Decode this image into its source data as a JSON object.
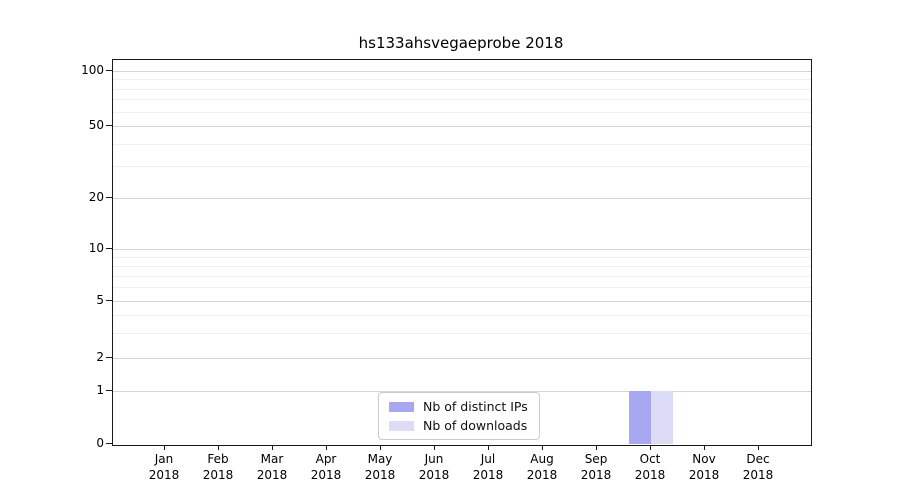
{
  "chart_data": {
    "type": "bar",
    "title": "hs133ahsvegaeprobe 2018",
    "categories": [
      "Jan 2018",
      "Feb 2018",
      "Mar 2018",
      "Apr 2018",
      "May 2018",
      "Jun 2018",
      "Jul 2018",
      "Aug 2018",
      "Sep 2018",
      "Oct 2018",
      "Nov 2018",
      "Dec 2018"
    ],
    "series": [
      {
        "name": "Nb of distinct IPs",
        "color": "#a8a8f2",
        "values": [
          0,
          0,
          0,
          0,
          0,
          0,
          0,
          0,
          0,
          1,
          0,
          0
        ]
      },
      {
        "name": "Nb of downloads",
        "color": "#dcdcf6",
        "values": [
          0,
          0,
          0,
          0,
          0,
          0,
          0,
          0,
          0,
          1,
          0,
          0
        ]
      }
    ],
    "y_axis": {
      "scale": "symlog",
      "ticks": [
        0,
        1,
        2,
        5,
        10,
        20,
        50,
        100
      ],
      "minor_ticks": [
        3,
        4,
        6,
        7,
        8,
        9,
        30,
        40,
        60,
        70,
        80,
        90
      ],
      "ylim": [
        0,
        115
      ]
    },
    "legend": {
      "position": "lower center"
    },
    "grid": {
      "axis": "y",
      "which": "both"
    },
    "colors": {
      "grid_major": "#d4d4d4",
      "grid_minor": "#efefef",
      "axis": "#1a1a1a",
      "text": "#000000",
      "background": "#ffffff"
    }
  }
}
